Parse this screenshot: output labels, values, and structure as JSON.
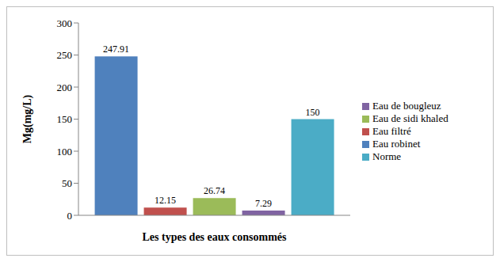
{
  "chart_data": {
    "type": "bar",
    "x_label": "Les types des eaux consommés",
    "y_label": "Mg(mg/L)",
    "categories": [
      null
    ],
    "series": [
      {
        "name": "Eau robinet",
        "color": "#4f81bd",
        "values": [
          247.91
        ]
      },
      {
        "name": "Eau filtré",
        "color": "#c0504d",
        "values": [
          12.15
        ]
      },
      {
        "name": "Eau de sidi khaled",
        "color": "#9bbb59",
        "values": [
          26.74
        ]
      },
      {
        "name": "Eau de bougleuz",
        "color": "#8064a2",
        "values": [
          7.29
        ]
      },
      {
        "name": "Norme",
        "color": "#4bacc6",
        "values": [
          150
        ]
      }
    ],
    "ylim": [
      0,
      300
    ],
    "yticks": [
      0,
      50,
      100,
      150,
      200,
      250,
      300
    ],
    "grid": false,
    "legend": "right",
    "data_labels": true
  }
}
